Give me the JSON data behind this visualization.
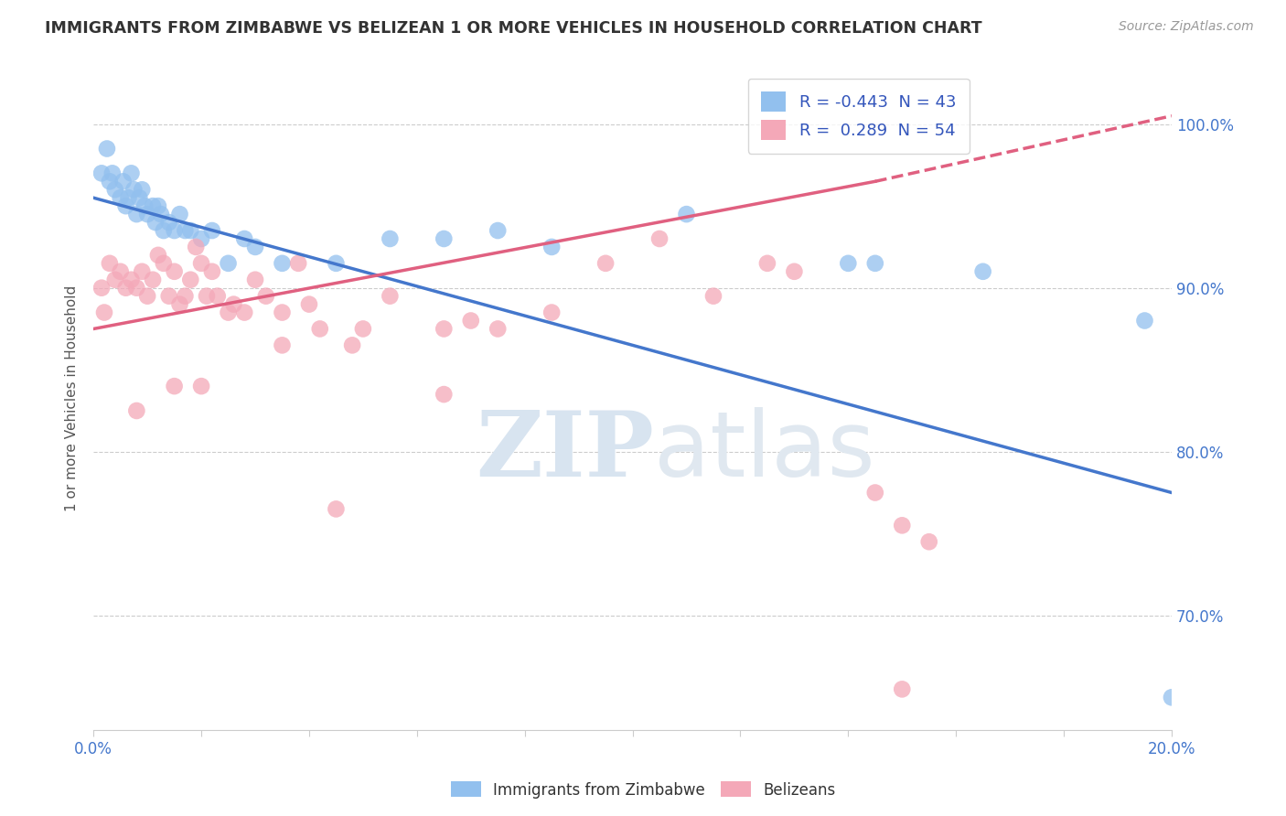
{
  "title": "IMMIGRANTS FROM ZIMBABWE VS BELIZEAN 1 OR MORE VEHICLES IN HOUSEHOLD CORRELATION CHART",
  "source": "Source: ZipAtlas.com",
  "xlabel_legend1": "Immigrants from Zimbabwe",
  "xlabel_legend2": "Belizeans",
  "ylabel": "1 or more Vehicles in Household",
  "xlim": [
    0.0,
    20.0
  ],
  "ylim": [
    63.0,
    103.5
  ],
  "ytick_vals": [
    70.0,
    80.0,
    90.0,
    100.0
  ],
  "xtick_vals": [
    0.0,
    2.0,
    4.0,
    6.0,
    8.0,
    10.0,
    12.0,
    14.0,
    16.0,
    18.0,
    20.0
  ],
  "R_blue": -0.443,
  "N_blue": 43,
  "R_pink": 0.289,
  "N_pink": 54,
  "blue_color": "#92C0EE",
  "pink_color": "#F4A8B8",
  "blue_line_color": "#4477CC",
  "pink_line_color": "#E06080",
  "watermark_zip": "ZIP",
  "watermark_atlas": "atlas",
  "blue_line_x0": 0.0,
  "blue_line_y0": 95.5,
  "blue_line_x1": 20.0,
  "blue_line_y1": 77.5,
  "pink_line_x0": 0.0,
  "pink_line_y0": 87.5,
  "pink_line_x1": 20.0,
  "pink_line_y1": 100.5,
  "pink_line_solid_x1": 14.5,
  "pink_line_solid_y1": 96.5,
  "blue_scatter_x": [
    0.15,
    0.25,
    0.3,
    0.35,
    0.4,
    0.5,
    0.55,
    0.6,
    0.65,
    0.7,
    0.75,
    0.8,
    0.85,
    0.9,
    0.95,
    1.0,
    1.1,
    1.15,
    1.2,
    1.25,
    1.3,
    1.4,
    1.5,
    1.6,
    1.7,
    1.8,
    2.0,
    2.2,
    2.5,
    2.8,
    3.0,
    3.5,
    4.5,
    5.5,
    6.5,
    7.5,
    8.5,
    11.0,
    14.0,
    14.5,
    16.5,
    19.5,
    20.0
  ],
  "blue_scatter_y": [
    97.0,
    98.5,
    96.5,
    97.0,
    96.0,
    95.5,
    96.5,
    95.0,
    95.5,
    97.0,
    96.0,
    94.5,
    95.5,
    96.0,
    95.0,
    94.5,
    95.0,
    94.0,
    95.0,
    94.5,
    93.5,
    94.0,
    93.5,
    94.5,
    93.5,
    93.5,
    93.0,
    93.5,
    91.5,
    93.0,
    92.5,
    91.5,
    91.5,
    93.0,
    93.0,
    93.5,
    92.5,
    94.5,
    91.5,
    91.5,
    91.0,
    88.0,
    65.0
  ],
  "pink_scatter_x": [
    0.15,
    0.2,
    0.3,
    0.4,
    0.5,
    0.6,
    0.7,
    0.8,
    0.9,
    1.0,
    1.1,
    1.2,
    1.3,
    1.4,
    1.5,
    1.6,
    1.7,
    1.8,
    1.9,
    2.0,
    2.1,
    2.2,
    2.3,
    2.5,
    2.6,
    2.8,
    3.0,
    3.2,
    3.5,
    3.8,
    4.0,
    4.2,
    4.8,
    5.5,
    6.5,
    7.0,
    7.5,
    8.5,
    9.5,
    10.5,
    11.5,
    12.5,
    13.0,
    14.5,
    15.0,
    15.5,
    6.5,
    5.0,
    3.5,
    2.0,
    1.5,
    0.8,
    4.5,
    15.0
  ],
  "pink_scatter_y": [
    90.0,
    88.5,
    91.5,
    90.5,
    91.0,
    90.0,
    90.5,
    90.0,
    91.0,
    89.5,
    90.5,
    92.0,
    91.5,
    89.5,
    91.0,
    89.0,
    89.5,
    90.5,
    92.5,
    91.5,
    89.5,
    91.0,
    89.5,
    88.5,
    89.0,
    88.5,
    90.5,
    89.5,
    88.5,
    91.5,
    89.0,
    87.5,
    86.5,
    89.5,
    87.5,
    88.0,
    87.5,
    88.5,
    91.5,
    93.0,
    89.5,
    91.5,
    91.0,
    77.5,
    75.5,
    74.5,
    83.5,
    87.5,
    86.5,
    84.0,
    84.0,
    82.5,
    76.5,
    65.5
  ]
}
